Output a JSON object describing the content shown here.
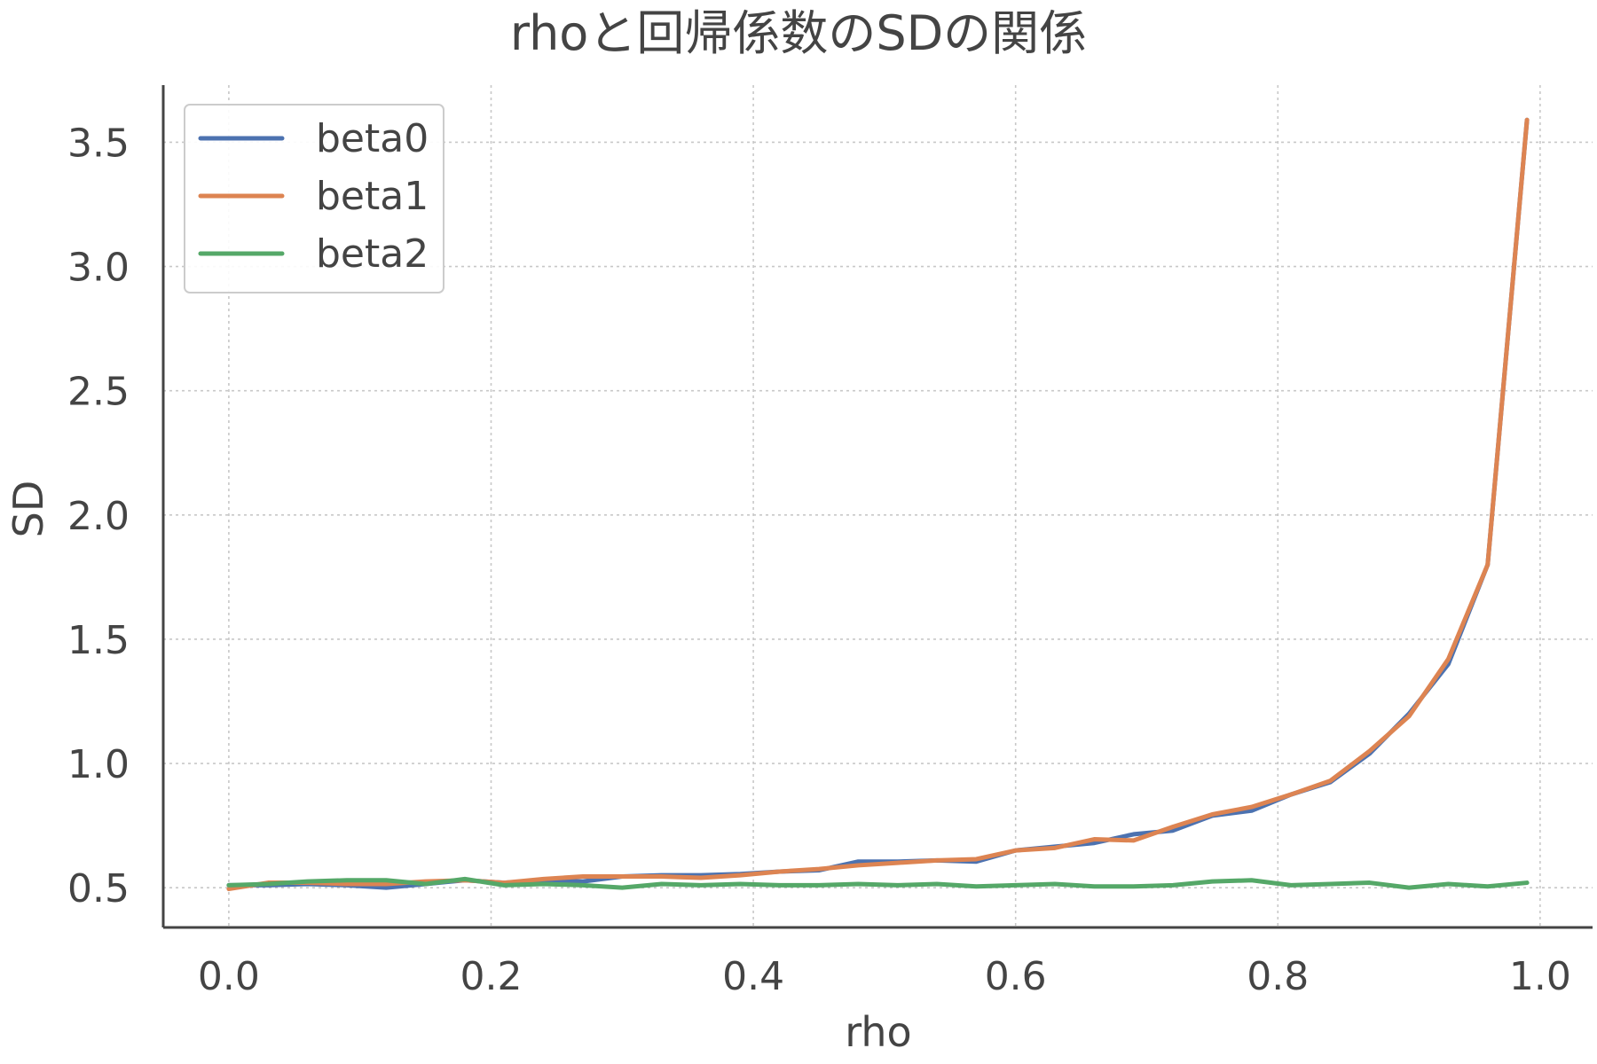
{
  "chart_data": {
    "type": "line",
    "title": "rhoと回帰係数のSDの関係",
    "xlabel": "rho",
    "ylabel": "SD",
    "xlim": [
      -0.05,
      1.04
    ],
    "ylim": [
      0.34,
      3.73
    ],
    "xticks": [
      0.0,
      0.2,
      0.4,
      0.6,
      0.8,
      1.0
    ],
    "xtick_labels": [
      "0.0",
      "0.2",
      "0.4",
      "0.6",
      "0.8",
      "1.0"
    ],
    "yticks": [
      0.5,
      1.0,
      1.5,
      2.0,
      2.5,
      3.0,
      3.5
    ],
    "ytick_labels": [
      "0.5",
      "1.0",
      "1.5",
      "2.0",
      "2.5",
      "3.0",
      "3.5"
    ],
    "grid": true,
    "legend_position": "top-left",
    "x": [
      0.0,
      0.03,
      0.06,
      0.09,
      0.12,
      0.15,
      0.18,
      0.21,
      0.24,
      0.27,
      0.3,
      0.33,
      0.36,
      0.39,
      0.42,
      0.45,
      0.48,
      0.51,
      0.54,
      0.57,
      0.6,
      0.63,
      0.66,
      0.69,
      0.72,
      0.75,
      0.78,
      0.81,
      0.84,
      0.87,
      0.9,
      0.93,
      0.96,
      0.99
    ],
    "series": [
      {
        "name": "beta0",
        "color": "#4c72b0",
        "values": [
          0.51,
          0.51,
          0.515,
          0.51,
          0.5,
          0.515,
          0.53,
          0.52,
          0.53,
          0.525,
          0.545,
          0.55,
          0.55,
          0.555,
          0.565,
          0.57,
          0.605,
          0.605,
          0.61,
          0.605,
          0.65,
          0.665,
          0.68,
          0.715,
          0.73,
          0.79,
          0.81,
          0.875,
          0.925,
          1.04,
          1.2,
          1.4,
          1.8,
          3.59
        ]
      },
      {
        "name": "beta1",
        "color": "#dd8452",
        "values": [
          0.495,
          0.52,
          0.52,
          0.515,
          0.515,
          0.525,
          0.53,
          0.52,
          0.535,
          0.545,
          0.545,
          0.545,
          0.54,
          0.55,
          0.565,
          0.575,
          0.59,
          0.6,
          0.61,
          0.615,
          0.65,
          0.66,
          0.695,
          0.69,
          0.745,
          0.795,
          0.825,
          0.875,
          0.93,
          1.05,
          1.19,
          1.42,
          1.8,
          3.59
        ]
      },
      {
        "name": "beta2",
        "color": "#55a868",
        "values": [
          0.51,
          0.515,
          0.525,
          0.53,
          0.53,
          0.515,
          0.535,
          0.51,
          0.515,
          0.51,
          0.5,
          0.515,
          0.51,
          0.515,
          0.51,
          0.51,
          0.515,
          0.51,
          0.515,
          0.505,
          0.51,
          0.515,
          0.505,
          0.505,
          0.51,
          0.525,
          0.53,
          0.51,
          0.515,
          0.52,
          0.5,
          0.515,
          0.505,
          0.52
        ]
      }
    ]
  }
}
